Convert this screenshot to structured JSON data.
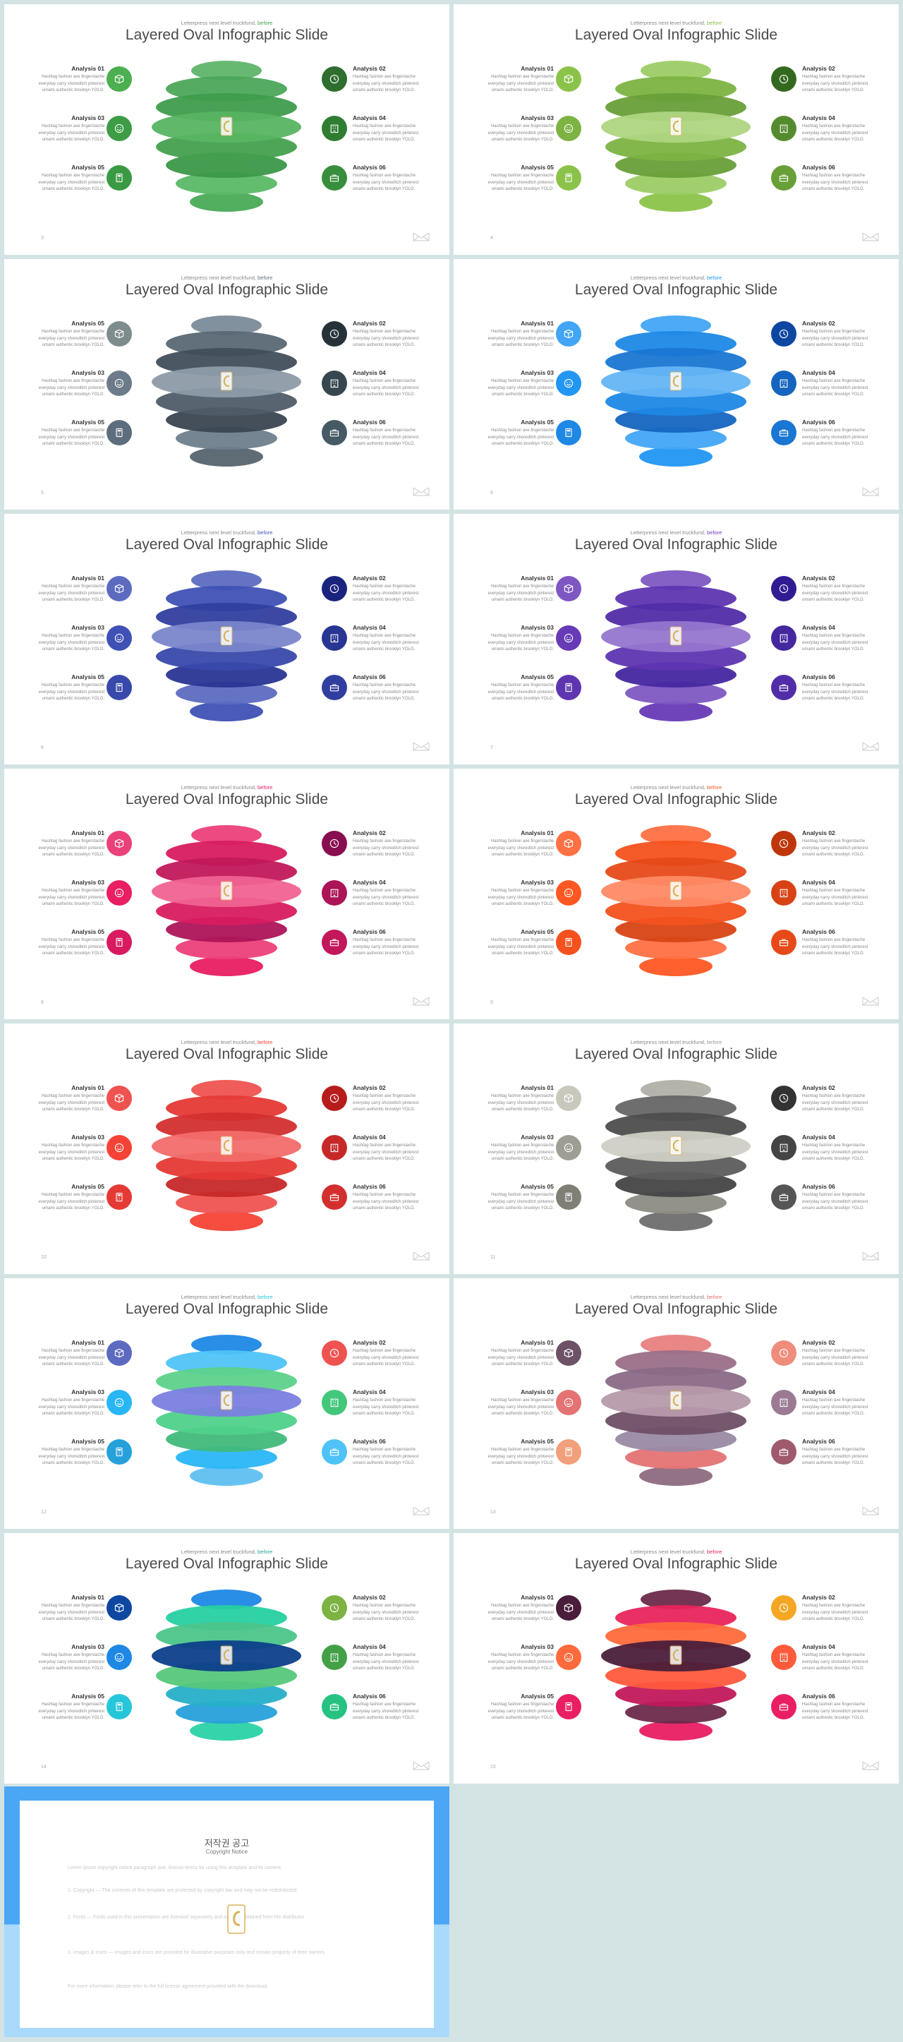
{
  "slide_common": {
    "subtitle": "Letterpress next level truckfund,",
    "subtitle_accent": "before",
    "title": "Layered Oval Infographic Slide",
    "description": "Hashtag fashion axe fingerstache everyday carry shoreditch pinterest umami authentic brooklyn YOLO."
  },
  "slides": [
    {
      "page": "3",
      "labels": [
        "Analysis 01",
        "Analysis 02",
        "Analysis 03",
        "Analysis 04",
        "Analysis 05",
        "Analysis 06"
      ],
      "accent": "#3fa34d",
      "icons_left": [
        "#4caf50",
        "#3d9c45",
        "#3a9a43"
      ],
      "icons_right": [
        "#2e6e2e",
        "#2e7d32",
        "#388e3c"
      ],
      "layers": [
        "#5fb56a",
        "#4ca75a",
        "#3e9c4c",
        "#57b462",
        "#44a04f",
        "#3b9848",
        "#5ab966",
        "#49ab57"
      ]
    },
    {
      "page": "4",
      "labels": [
        "Analysis 01",
        "Analysis 02",
        "Analysis 03",
        "Analysis 04",
        "Analysis 05",
        "Analysis 06"
      ],
      "accent": "#8bc34a",
      "icons_left": [
        "#8bc34a",
        "#7cb342",
        "#8bc34a"
      ],
      "icons_right": [
        "#33691e",
        "#558b2f",
        "#689f38"
      ],
      "layers": [
        "#9ccc65",
        "#7cb342",
        "#689f38",
        "#aed581",
        "#7cb342",
        "#689f38",
        "#9ccc65",
        "#8bc34a"
      ]
    },
    {
      "page": "5",
      "labels": [
        "Analysis 05",
        "Analysis 02",
        "Analysis 03",
        "Analysis 04",
        "Analysis 05",
        "Analysis 06"
      ],
      "accent": "#5d6d7e",
      "icons_left": [
        "#7f8c8d",
        "#6c7a89",
        "#5d6d7e"
      ],
      "icons_right": [
        "#263238",
        "#37474f",
        "#455a64"
      ],
      "layers": [
        "#7b8b99",
        "#5a6875",
        "#414e5a",
        "#8d9ba8",
        "#4f5c68",
        "#3a4651",
        "#6e7e8c",
        "#56646f"
      ]
    },
    {
      "page": "6",
      "labels": [
        "Analysis 01",
        "Analysis 02",
        "Analysis 03",
        "Analysis 04",
        "Analysis 05",
        "Analysis 06"
      ],
      "accent": "#2196f3",
      "icons_left": [
        "#42a5f5",
        "#2196f3",
        "#1e88e5"
      ],
      "icons_right": [
        "#0d47a1",
        "#1565c0",
        "#1976d2"
      ],
      "layers": [
        "#42a5f5",
        "#1e88e5",
        "#1976d2",
        "#64b5f6",
        "#1e88e5",
        "#1565c0",
        "#42a5f5",
        "#2196f3"
      ]
    },
    {
      "page": "6",
      "labels": [
        "Analysis 01",
        "Analysis 02",
        "Analysis 03",
        "Analysis 04",
        "Analysis 05",
        "Analysis 06"
      ],
      "accent": "#3f51b5",
      "icons_left": [
        "#5c6bc0",
        "#3f51b5",
        "#3949ab"
      ],
      "icons_right": [
        "#1a237e",
        "#283593",
        "#303f9f"
      ],
      "layers": [
        "#5c6bc0",
        "#3f51b5",
        "#303f9f",
        "#7986cb",
        "#3949ab",
        "#283593",
        "#5c6bc0",
        "#3f51b5"
      ]
    },
    {
      "page": "7",
      "labels": [
        "Analysis 01",
        "Analysis 02",
        "Analysis 03",
        "Analysis 04",
        "Analysis 05",
        "Analysis 06"
      ],
      "accent": "#673ab7",
      "icons_left": [
        "#7e57c2",
        "#673ab7",
        "#5e35b1"
      ],
      "icons_right": [
        "#311b92",
        "#4527a0",
        "#512da8"
      ],
      "layers": [
        "#7e57c2",
        "#5e35b1",
        "#512da8",
        "#9575cd",
        "#5e35b1",
        "#4527a0",
        "#7e57c2",
        "#673ab7"
      ]
    },
    {
      "page": "8",
      "labels": [
        "Analysis 01",
        "Analysis 02",
        "Analysis 03",
        "Analysis 04",
        "Analysis 05",
        "Analysis 06"
      ],
      "accent": "#e91e63",
      "icons_left": [
        "#ec407a",
        "#e91e63",
        "#d81b60"
      ],
      "icons_right": [
        "#880e4f",
        "#ad1457",
        "#c2185b"
      ],
      "layers": [
        "#ec407a",
        "#d81b60",
        "#c2185b",
        "#f06292",
        "#d81b60",
        "#ad1457",
        "#ec407a",
        "#e91e63"
      ]
    },
    {
      "page": "9",
      "labels": [
        "Analysis 01",
        "Analysis 02",
        "Analysis 03",
        "Analysis 04",
        "Analysis 05",
        "Analysis 06"
      ],
      "accent": "#ff5722",
      "icons_left": [
        "#ff7043",
        "#ff5722",
        "#f4511e"
      ],
      "icons_right": [
        "#bf360c",
        "#d84315",
        "#e64a19"
      ],
      "layers": [
        "#ff7043",
        "#f4511e",
        "#e64a19",
        "#ff8a65",
        "#f4511e",
        "#d84315",
        "#ff7043",
        "#ff5722"
      ]
    },
    {
      "page": "10",
      "labels": [
        "Analysis 01",
        "Analysis 02",
        "Analysis 03",
        "Analysis 04",
        "Analysis 05",
        "Analysis 06"
      ],
      "accent": "#f44336",
      "icons_left": [
        "#ef5350",
        "#f44336",
        "#e53935"
      ],
      "icons_right": [
        "#b71c1c",
        "#c62828",
        "#d32f2f"
      ],
      "layers": [
        "#ef5350",
        "#e53935",
        "#d32f2f",
        "#f26d6a",
        "#e53935",
        "#c62828",
        "#ef5350",
        "#f44336"
      ]
    },
    {
      "page": "11",
      "labels": [
        "Analysis 01",
        "Analysis 02",
        "Analysis 03",
        "Analysis 04",
        "Analysis 05",
        "Analysis 06"
      ],
      "accent": "#9e9e9e",
      "icons_left": [
        "#c8c8bd",
        "#9e9e94",
        "#7f7f76"
      ],
      "icons_right": [
        "#333333",
        "#444444",
        "#555555"
      ],
      "layers": [
        "#b0b0a6",
        "#666666",
        "#4d4d4d",
        "#cfcfc4",
        "#5c5c5c",
        "#444444",
        "#8c8c84",
        "#6e6e6e"
      ]
    },
    {
      "page": "12",
      "labels": [
        "Analysis 01",
        "Analysis 02",
        "Analysis 03",
        "Analysis 04",
        "Analysis 05",
        "Analysis 06"
      ],
      "accent": "#26c6da",
      "icons_left": [
        "#5c6bc0",
        "#29b6f6",
        "#26a0da"
      ],
      "icons_right": [
        "#ef5350",
        "#43c77a",
        "#4fc3f7"
      ],
      "layers": [
        "#1e88e5",
        "#4fc3f7",
        "#5dd28a",
        "#7b7fe0",
        "#4fd18a",
        "#42b97a",
        "#29b6f6",
        "#5ec0f0"
      ]
    },
    {
      "page": "13",
      "labels": [
        "Analysis 01",
        "Analysis 02",
        "Analysis 03",
        "Analysis 04",
        "Analysis 05",
        "Analysis 06"
      ],
      "accent": "#e57373",
      "icons_left": [
        "#6d5266",
        "#e57373",
        "#f2a07b"
      ],
      "icons_right": [
        "#f08c7c",
        "#9c7a94",
        "#a05a6e"
      ],
      "layers": [
        "#e88080",
        "#9a6f88",
        "#8a6a86",
        "#b69aaa",
        "#6e4f66",
        "#9a8aa4",
        "#e57373",
        "#8e6a80"
      ]
    },
    {
      "page": "14",
      "labels": [
        "Analysis 01",
        "Analysis 02",
        "Analysis 03",
        "Analysis 04",
        "Analysis 05",
        "Analysis 06"
      ],
      "accent": "#26a69a",
      "icons_left": [
        "#0d47a1",
        "#1e88e5",
        "#26c6da"
      ],
      "icons_right": [
        "#7cb342",
        "#43a047",
        "#26c281"
      ],
      "layers": [
        "#1e88e5",
        "#26d0a0",
        "#4cc58a",
        "#0d3f8a",
        "#56c77a",
        "#26b0c8",
        "#26a0da",
        "#2bd2a6"
      ]
    },
    {
      "page": "15",
      "labels": [
        "Analysis 01",
        "Analysis 02",
        "Analysis 03",
        "Analysis 04",
        "Analysis 05",
        "Analysis 06"
      ],
      "accent": "#e91e63",
      "icons_left": [
        "#4a1d3a",
        "#ff6a3c",
        "#e91e63"
      ],
      "icons_right": [
        "#f5a623",
        "#ff5a3c",
        "#e91e63"
      ],
      "layers": [
        "#6b2a4a",
        "#e8245c",
        "#ff6a3c",
        "#4a1d3a",
        "#ff5a3c",
        "#c2185b",
        "#6b2a4a",
        "#e91e63"
      ]
    }
  ],
  "notice": {
    "title": "저작권 공고",
    "subtitle": "Copyright Notice",
    "paragraphs": [
      "Lorem ipsum copyright notice paragraph one, license terms for using this template and its content.",
      "1. Copyright — The contents of this template are protected by copyright law and may not be redistributed.",
      "2. Fonts — Fonts used in this presentation are licensed separately and must be obtained from the distributor.",
      "3. Images & Icons — Images and icons are provided for illustrative purposes only and remain property of their owners.",
      "For more information, please refer to the full license agreement provided with the download."
    ]
  }
}
